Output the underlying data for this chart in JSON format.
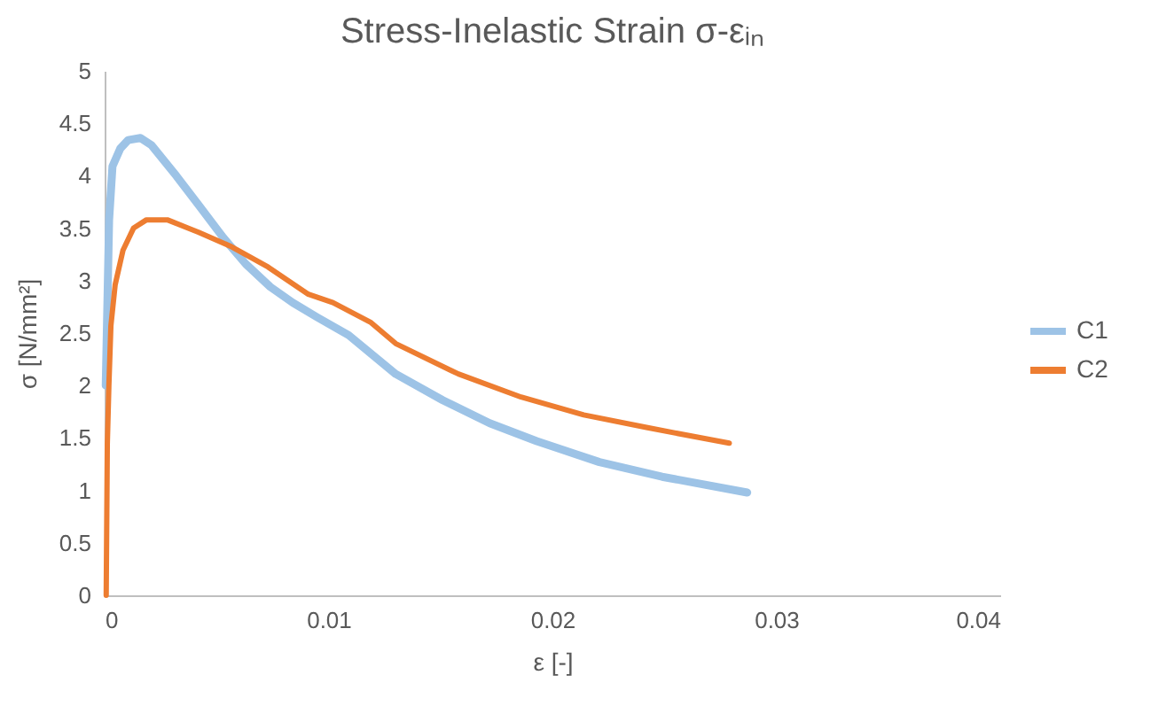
{
  "chart_data": {
    "type": "line",
    "title": "Stress-Inelastic Strain σ-εᵢₙ",
    "xlabel": "ε [-]",
    "ylabel": "σ [N/mm²]",
    "xlim": [
      0,
      0.04
    ],
    "xticks": [
      0,
      0.01,
      0.02,
      0.03,
      0.04
    ],
    "ylim": [
      0,
      5
    ],
    "yticks": [
      0,
      0.5,
      1,
      1.5,
      2,
      2.5,
      3,
      3.5,
      4,
      4.5,
      5
    ],
    "grid": false,
    "legend": "right",
    "marker": "none",
    "line_style": "solid",
    "series": [
      {
        "name": "C1",
        "color": "#9dc3e6",
        "x": [
          5e-05,
          0.0002,
          0.00035,
          0.0007,
          0.00105,
          0.0016,
          0.0021,
          0.0032,
          0.0042,
          0.0053,
          0.0063,
          0.0074,
          0.0084,
          0.0095,
          0.0109,
          0.013,
          0.0151,
          0.0172,
          0.0193,
          0.0221,
          0.0249,
          0.0287
        ],
        "values": [
          2.0,
          3.58,
          4.09,
          4.26,
          4.34,
          4.36,
          4.29,
          4.0,
          3.72,
          3.41,
          3.16,
          2.94,
          2.79,
          2.65,
          2.48,
          2.11,
          1.86,
          1.64,
          1.47,
          1.27,
          1.13,
          0.98
        ]
      },
      {
        "name": "C2",
        "color": "#ed7d31",
        "x": [
          7e-05,
          0.00012,
          0.00019,
          0.00028,
          0.00047,
          0.00082,
          0.00129,
          0.00187,
          0.0028,
          0.0042,
          0.0056,
          0.0073,
          0.0091,
          0.0102,
          0.0119,
          0.013,
          0.0158,
          0.0186,
          0.0214,
          0.0242,
          0.0279
        ],
        "values": [
          0,
          1.44,
          2.0,
          2.57,
          2.96,
          3.29,
          3.5,
          3.58,
          3.58,
          3.46,
          3.33,
          3.13,
          2.87,
          2.79,
          2.6,
          2.4,
          2.11,
          1.89,
          1.72,
          1.6,
          1.45
        ]
      }
    ]
  }
}
